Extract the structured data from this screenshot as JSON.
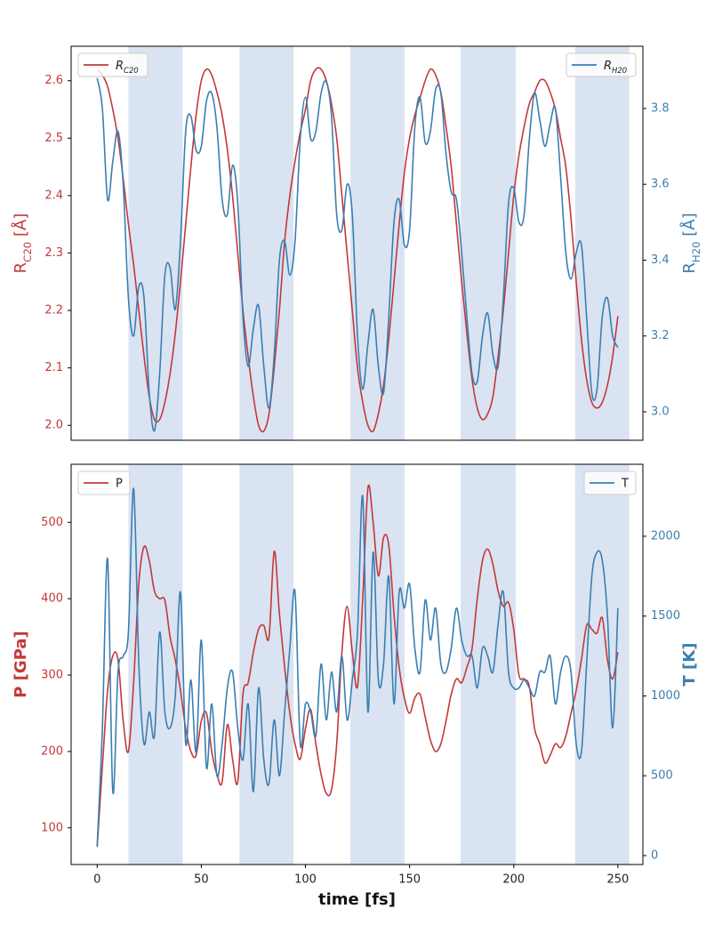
{
  "chart_data": [
    {
      "type": "line",
      "x": [
        0,
        2.5,
        5,
        7.5,
        10,
        12.5,
        15,
        17.5,
        20,
        22.5,
        25,
        27.5,
        30,
        32.5,
        35,
        37.5,
        40,
        42.5,
        45,
        47.5,
        50,
        52.5,
        55,
        57.5,
        60,
        62.5,
        65,
        67.5,
        70,
        72.5,
        75,
        77.5,
        80,
        82.5,
        85,
        87.5,
        90,
        92.5,
        95,
        97.5,
        100,
        102.5,
        105,
        107.5,
        110,
        112.5,
        115,
        117.5,
        120,
        122.5,
        125,
        127.5,
        130,
        132.5,
        135,
        137.5,
        140,
        142.5,
        145,
        147.5,
        150,
        152.5,
        155,
        157.5,
        160,
        162.5,
        165,
        167.5,
        170,
        172.5,
        175,
        177.5,
        180,
        182.5,
        185,
        187.5,
        190,
        192.5,
        195,
        197.5,
        200,
        202.5,
        205,
        207.5,
        210,
        212.5,
        215,
        217.5,
        220,
        222.5,
        225,
        227.5,
        230,
        232.5,
        235,
        237.5,
        240,
        242.5,
        245,
        247.5,
        250
      ],
      "xlim": [
        -12.5,
        262
      ],
      "ylim": [
        1.974,
        2.66
      ],
      "yticks": [
        {
          "value": 2,
          "label": "2.0"
        },
        2.1,
        2.2,
        2.3,
        2.4,
        2.5,
        2.6
      ],
      "y2lim": [
        2.925,
        3.964
      ],
      "y2ticks": [
        {
          "value": 3,
          "label": "3.0"
        },
        3.2,
        3.4,
        3.6,
        3.8
      ],
      "ylabel": "RC20 [Å]",
      "y2label": "RH20 [Å]",
      "shaded_regions": [
        [
          15,
          41
        ],
        [
          68.3,
          94.3
        ],
        [
          121.6,
          147.6
        ],
        [
          174.5,
          201
        ],
        [
          229.5,
          255.5
        ]
      ],
      "shade_color": "#dae3f1",
      "series": [
        {
          "name": "RC20",
          "color": "#c4383a",
          "legend": "upper left",
          "values": [
            2.62,
            2.61,
            2.59,
            2.55,
            2.5,
            2.43,
            2.35,
            2.28,
            2.2,
            2.12,
            2.05,
            2.01,
            2.01,
            2.04,
            2.09,
            2.16,
            2.25,
            2.35,
            2.45,
            2.54,
            2.6,
            2.62,
            2.61,
            2.58,
            2.54,
            2.48,
            2.4,
            2.3,
            2.2,
            2.12,
            2.05,
            2.0,
            1.99,
            2.02,
            2.1,
            2.2,
            2.32,
            2.4,
            2.46,
            2.51,
            2.55,
            2.6,
            2.62,
            2.62,
            2.6,
            2.56,
            2.5,
            2.4,
            2.3,
            2.2,
            2.1,
            2.04,
            2.0,
            1.99,
            2.02,
            2.07,
            2.15,
            2.25,
            2.35,
            2.44,
            2.5,
            2.54,
            2.57,
            2.6,
            2.62,
            2.61,
            2.58,
            2.52,
            2.45,
            2.35,
            2.25,
            2.16,
            2.08,
            2.03,
            2.01,
            2.02,
            2.05,
            2.12,
            2.2,
            2.3,
            2.4,
            2.47,
            2.52,
            2.56,
            2.58,
            2.6,
            2.6,
            2.58,
            2.55,
            2.5,
            2.45,
            2.36,
            2.25,
            2.15,
            2.08,
            2.04,
            2.03,
            2.04,
            2.07,
            2.12,
            2.19
          ]
        },
        {
          "name": "RH20",
          "color": "#3a7fb2",
          "legend": "upper right",
          "axis": "y2",
          "values": [
            3.88,
            3.8,
            3.56,
            3.66,
            3.74,
            3.6,
            3.3,
            3.2,
            3.33,
            3.3,
            3.05,
            2.95,
            3.1,
            3.36,
            3.38,
            3.27,
            3.45,
            3.74,
            3.78,
            3.69,
            3.7,
            3.82,
            3.84,
            3.75,
            3.56,
            3.52,
            3.65,
            3.55,
            3.25,
            3.12,
            3.22,
            3.28,
            3.12,
            3.01,
            3.15,
            3.4,
            3.45,
            3.36,
            3.45,
            3.72,
            3.83,
            3.72,
            3.74,
            3.84,
            3.87,
            3.78,
            3.52,
            3.48,
            3.6,
            3.52,
            3.2,
            3.06,
            3.18,
            3.27,
            3.12,
            3.05,
            3.25,
            3.5,
            3.56,
            3.44,
            3.48,
            3.75,
            3.83,
            3.71,
            3.74,
            3.85,
            3.84,
            3.68,
            3.58,
            3.56,
            3.42,
            3.25,
            3.1,
            3.08,
            3.2,
            3.26,
            3.15,
            3.12,
            3.3,
            3.55,
            3.59,
            3.5,
            3.52,
            3.72,
            3.84,
            3.77,
            3.7,
            3.76,
            3.8,
            3.62,
            3.42,
            3.35,
            3.42,
            3.44,
            3.25,
            3.05,
            3.06,
            3.25,
            3.3,
            3.2,
            3.17
          ]
        }
      ]
    },
    {
      "type": "line",
      "x": [
        0,
        2.5,
        5,
        7.5,
        10,
        12.5,
        15,
        17.5,
        20,
        22.5,
        25,
        27.5,
        30,
        32.5,
        35,
        37.5,
        40,
        42.5,
        45,
        47.5,
        50,
        52.5,
        55,
        57.5,
        60,
        62.5,
        65,
        67.5,
        70,
        72.5,
        75,
        77.5,
        80,
        82.5,
        85,
        87.5,
        90,
        92.5,
        95,
        97.5,
        100,
        102.5,
        105,
        107.5,
        110,
        112.5,
        115,
        117.5,
        120,
        122.5,
        125,
        127.5,
        130,
        132.5,
        135,
        137.5,
        140,
        142.5,
        145,
        147.5,
        150,
        152.5,
        155,
        157.5,
        160,
        162.5,
        165,
        167.5,
        170,
        172.5,
        175,
        177.5,
        180,
        182.5,
        185,
        187.5,
        190,
        192.5,
        195,
        197.5,
        200,
        202.5,
        205,
        207.5,
        210,
        212.5,
        215,
        217.5,
        220,
        222.5,
        225,
        227.5,
        230,
        232.5,
        235,
        237.5,
        240,
        242.5,
        245,
        247.5,
        250
      ],
      "xlim": [
        -12.5,
        262
      ],
      "xticks": [
        0,
        50,
        100,
        150,
        200,
        250
      ],
      "xlabel": "time [fs]",
      "ylim": [
        52,
        576
      ],
      "yticks": [
        100,
        200,
        300,
        400,
        500
      ],
      "y2lim": [
        -56,
        2451
      ],
      "y2ticks": [
        0,
        500,
        1000,
        1500,
        2000
      ],
      "ylabel": "P [GPa]",
      "y2label": "T [K]",
      "shaded_regions": [
        [
          15,
          41
        ],
        [
          68.3,
          94.3
        ],
        [
          121.6,
          147.6
        ],
        [
          174.5,
          201
        ],
        [
          229.5,
          255.5
        ]
      ],
      "shade_color": "#dae3f1",
      "series": [
        {
          "name": "P",
          "color": "#c4383a",
          "legend": "upper left",
          "values": [
            75,
            180,
            280,
            325,
            320,
            240,
            200,
            290,
            420,
            468,
            450,
            410,
            400,
            398,
            350,
            320,
            280,
            230,
            200,
            195,
            240,
            250,
            200,
            170,
            160,
            235,
            190,
            160,
            275,
            290,
            330,
            360,
            365,
            350,
            462,
            380,
            310,
            250,
            210,
            190,
            230,
            255,
            210,
            170,
            145,
            150,
            210,
            330,
            390,
            330,
            285,
            400,
            545,
            500,
            430,
            480,
            470,
            380,
            310,
            270,
            250,
            270,
            275,
            245,
            215,
            200,
            210,
            240,
            275,
            295,
            290,
            310,
            335,
            400,
            450,
            465,
            445,
            410,
            390,
            395,
            360,
            300,
            295,
            285,
            230,
            210,
            185,
            195,
            210,
            205,
            220,
            250,
            280,
            320,
            365,
            360,
            355,
            375,
            320,
            295,
            330
          ]
        },
        {
          "name": "T",
          "color": "#3a7fb2",
          "legend": "upper right",
          "axis": "y2",
          "values": [
            60,
            800,
            1860,
            400,
            1150,
            1250,
            1400,
            2300,
            1200,
            700,
            900,
            750,
            1400,
            900,
            800,
            1000,
            1650,
            700,
            1100,
            650,
            1350,
            550,
            950,
            500,
            700,
            1050,
            1150,
            800,
            600,
            950,
            400,
            1050,
            600,
            450,
            850,
            500,
            900,
            1300,
            1650,
            700,
            950,
            900,
            750,
            1200,
            850,
            1150,
            900,
            1250,
            850,
            1100,
            1400,
            2250,
            900,
            1900,
            1100,
            1200,
            1750,
            950,
            1650,
            1550,
            1700,
            1300,
            1150,
            1600,
            1350,
            1550,
            1200,
            1150,
            1300,
            1550,
            1350,
            1250,
            1250,
            1050,
            1300,
            1250,
            1150,
            1450,
            1650,
            1150,
            1050,
            1050,
            1100,
            1050,
            1000,
            1150,
            1150,
            1250,
            950,
            1150,
            1250,
            1150,
            700,
            650,
            1200,
            1750,
            1900,
            1850,
            1500,
            800,
            1550
          ]
        }
      ]
    }
  ]
}
